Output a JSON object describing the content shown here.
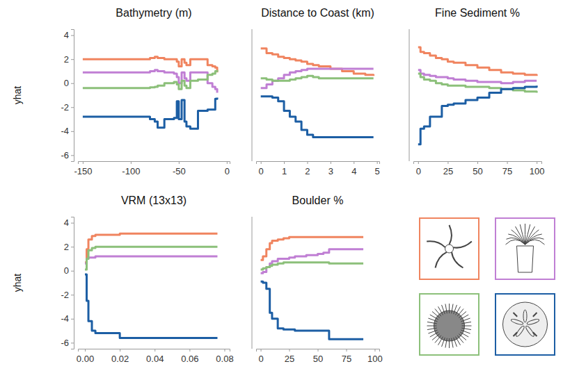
{
  "chart_data": [
    {
      "type": "line",
      "title": "Bathymetry (m)",
      "ylabel": "yhat",
      "x": [
        -150,
        -130,
        -110,
        -90,
        -80,
        -75,
        -72,
        -65,
        -55,
        -52,
        -50,
        -47,
        -44,
        -42,
        -38,
        -30,
        -20,
        -15,
        -12,
        -10
      ],
      "xlim": [
        -155,
        3
      ],
      "xticks": [
        -150,
        -100,
        -50,
        0
      ],
      "ylim": [
        -6.5,
        4.5
      ],
      "yticks": [
        -6,
        -4,
        -2,
        0,
        2,
        4
      ],
      "series": [
        {
          "color": "#f0845f",
          "values": [
            2.0,
            2.0,
            2.0,
            2.0,
            2.1,
            2.2,
            2.1,
            2.0,
            2.0,
            1.8,
            1.4,
            2.0,
            1.7,
            1.5,
            2.0,
            2.0,
            1.5,
            1.4,
            1.3,
            0.9
          ]
        },
        {
          "color": "#c07fd4",
          "values": [
            0.9,
            0.9,
            0.9,
            0.9,
            1.0,
            1.1,
            1.0,
            0.9,
            0.8,
            0.5,
            0.0,
            0.9,
            0.4,
            0.2,
            0.9,
            0.9,
            0.0,
            -0.3,
            -0.5,
            -0.8
          ]
        },
        {
          "color": "#8cc07a",
          "values": [
            -0.4,
            -0.4,
            -0.4,
            -0.4,
            -0.35,
            -0.3,
            -0.2,
            0.0,
            0.1,
            -0.1,
            -0.5,
            0.2,
            -0.2,
            -0.4,
            0.2,
            0.3,
            0.7,
            0.8,
            1.0,
            1.1
          ]
        },
        {
          "color": "#1c5ea4",
          "values": [
            -2.8,
            -2.8,
            -2.8,
            -2.8,
            -3.0,
            -3.2,
            -3.7,
            -3.0,
            -2.9,
            -1.5,
            -3.0,
            -1.4,
            -3.2,
            -3.6,
            -3.8,
            -2.3,
            -2.2,
            -2.2,
            -1.3,
            -1.2
          ]
        }
      ]
    },
    {
      "type": "line",
      "title": "Distance to Coast (km)",
      "tick_labels": "x",
      "x": [
        0,
        0.25,
        0.5,
        0.75,
        1,
        1.25,
        1.5,
        1.75,
        2,
        2.25,
        2.5,
        3,
        3.5,
        4,
        4.5,
        4.85
      ],
      "xlim": [
        -0.2,
        5.1
      ],
      "xticks": [
        0,
        1,
        2,
        3,
        4,
        5
      ],
      "ylim": [
        -6.5,
        4.5
      ],
      "series": [
        {
          "color": "#f0845f",
          "values": [
            2.9,
            2.5,
            2.4,
            2.2,
            2.1,
            2.0,
            1.9,
            1.8,
            1.6,
            1.5,
            1.4,
            1.2,
            1.0,
            0.8,
            0.7,
            0.6
          ]
        },
        {
          "color": "#c07fd4",
          "values": [
            -0.4,
            -0.1,
            0.2,
            0.4,
            0.7,
            0.9,
            1.0,
            1.1,
            1.2,
            1.2,
            1.2,
            1.2,
            1.2,
            1.2,
            1.2,
            1.2
          ]
        },
        {
          "color": "#8cc07a",
          "values": [
            0.4,
            0.3,
            0.2,
            0.2,
            0.2,
            0.3,
            0.4,
            0.5,
            0.6,
            0.5,
            0.4,
            0.4,
            0.4,
            0.4,
            0.4,
            0.4
          ]
        },
        {
          "color": "#1c5ea4",
          "values": [
            -1.1,
            -1.1,
            -1.2,
            -1.5,
            -2.3,
            -2.8,
            -3.2,
            -3.9,
            -4.3,
            -4.5,
            -4.5,
            -4.5,
            -4.5,
            -4.5,
            -4.5,
            -4.5
          ]
        }
      ]
    },
    {
      "type": "line",
      "title": "Fine Sediment %",
      "tick_labels": "x",
      "x": [
        0,
        2,
        5,
        10,
        15,
        20,
        25,
        30,
        40,
        50,
        60,
        70,
        80,
        90,
        100
      ],
      "xlim": [
        -4,
        104
      ],
      "xticks": [
        0,
        25,
        50,
        75,
        100
      ],
      "ylim": [
        -6.5,
        4.5
      ],
      "series": [
        {
          "color": "#f0845f",
          "values": [
            3.0,
            2.6,
            2.5,
            2.3,
            2.1,
            2.0,
            1.8,
            1.7,
            1.5,
            1.3,
            1.1,
            0.9,
            0.8,
            0.7,
            0.6
          ]
        },
        {
          "color": "#c07fd4",
          "values": [
            1.1,
            0.8,
            0.7,
            0.6,
            0.5,
            0.5,
            0.4,
            0.3,
            0.2,
            0.1,
            0.1,
            0.0,
            0.1,
            0.2,
            0.2
          ]
        },
        {
          "color": "#8cc07a",
          "values": [
            0.8,
            0.5,
            0.3,
            0.2,
            0.0,
            -0.1,
            -0.2,
            -0.2,
            -0.3,
            -0.3,
            -0.4,
            -0.5,
            -0.6,
            -0.7,
            -0.8
          ]
        },
        {
          "color": "#1c5ea4",
          "values": [
            -5.1,
            -3.8,
            -3.6,
            -2.8,
            -2.8,
            -1.9,
            -1.8,
            -1.7,
            -1.4,
            -1.2,
            -0.8,
            -0.5,
            -0.4,
            -0.3,
            -0.2
          ]
        }
      ]
    },
    {
      "type": "line",
      "title": "VRM (13x13)",
      "ylabel": "yhat",
      "x": [
        0,
        0.001,
        0.002,
        0.004,
        0.006,
        0.01,
        0.02,
        0.03,
        0.05,
        0.076
      ],
      "xlim": [
        -0.004,
        0.083
      ],
      "xticks": [
        {
          "value": 0,
          "label": "0.00"
        },
        {
          "value": 0.02,
          "label": "0.02"
        },
        {
          "value": 0.04,
          "label": "0.04"
        },
        {
          "value": 0.06,
          "label": "0.06"
        },
        {
          "value": 0.08,
          "label": "0.08"
        }
      ],
      "ylim": [
        -6.5,
        4.5
      ],
      "yticks": [
        -6,
        -4,
        -2,
        0,
        2,
        4
      ],
      "series": [
        {
          "color": "#f0845f",
          "values": [
            0.7,
            1.8,
            2.6,
            2.9,
            3.0,
            3.0,
            3.1,
            3.1,
            3.1,
            3.1
          ]
        },
        {
          "color": "#c07fd4",
          "values": [
            0.6,
            1.0,
            1.1,
            1.1,
            1.2,
            1.2,
            1.2,
            1.2,
            1.2,
            1.2
          ]
        },
        {
          "color": "#8cc07a",
          "values": [
            0.1,
            1.0,
            1.7,
            1.9,
            2.0,
            2.0,
            2.0,
            2.0,
            2.0,
            2.0
          ]
        },
        {
          "color": "#1c5ea4",
          "values": [
            -0.3,
            -2.5,
            -4.2,
            -5.0,
            -5.2,
            -5.2,
            -5.6,
            -5.6,
            -5.6,
            -5.6
          ]
        }
      ]
    },
    {
      "type": "line",
      "title": "Boulder %",
      "tick_labels": "x",
      "x": [
        0,
        2,
        5,
        8,
        10,
        15,
        20,
        25,
        30,
        40,
        50,
        55,
        60,
        65,
        70,
        80,
        90
      ],
      "xlim": [
        -4,
        104
      ],
      "xticks": [
        0,
        25,
        50,
        75,
        100
      ],
      "ylim": [
        -6.5,
        4.5
      ],
      "series": [
        {
          "color": "#f0845f",
          "values": [
            0.9,
            1.2,
            1.8,
            2.3,
            2.5,
            2.6,
            2.7,
            2.8,
            2.8,
            2.8,
            2.8,
            2.8,
            2.8,
            2.8,
            2.8,
            2.8,
            2.8
          ]
        },
        {
          "color": "#c07fd4",
          "values": [
            -0.2,
            -0.1,
            0.3,
            0.6,
            0.8,
            1.0,
            1.0,
            1.1,
            1.2,
            1.3,
            1.4,
            1.5,
            1.8,
            1.8,
            1.8,
            1.8,
            1.8
          ]
        },
        {
          "color": "#8cc07a",
          "values": [
            0.1,
            0.2,
            0.3,
            0.4,
            0.5,
            0.6,
            0.7,
            0.7,
            0.7,
            0.7,
            0.7,
            0.7,
            0.6,
            0.6,
            0.6,
            0.6,
            0.6
          ]
        },
        {
          "color": "#1c5ea4",
          "values": [
            -0.9,
            -1.0,
            -1.5,
            -3.5,
            -4.0,
            -4.8,
            -4.9,
            -4.9,
            -5.0,
            -5.0,
            -5.0,
            -5.0,
            -5.7,
            -5.7,
            -5.7,
            -5.7,
            -5.7
          ]
        }
      ]
    }
  ]
}
